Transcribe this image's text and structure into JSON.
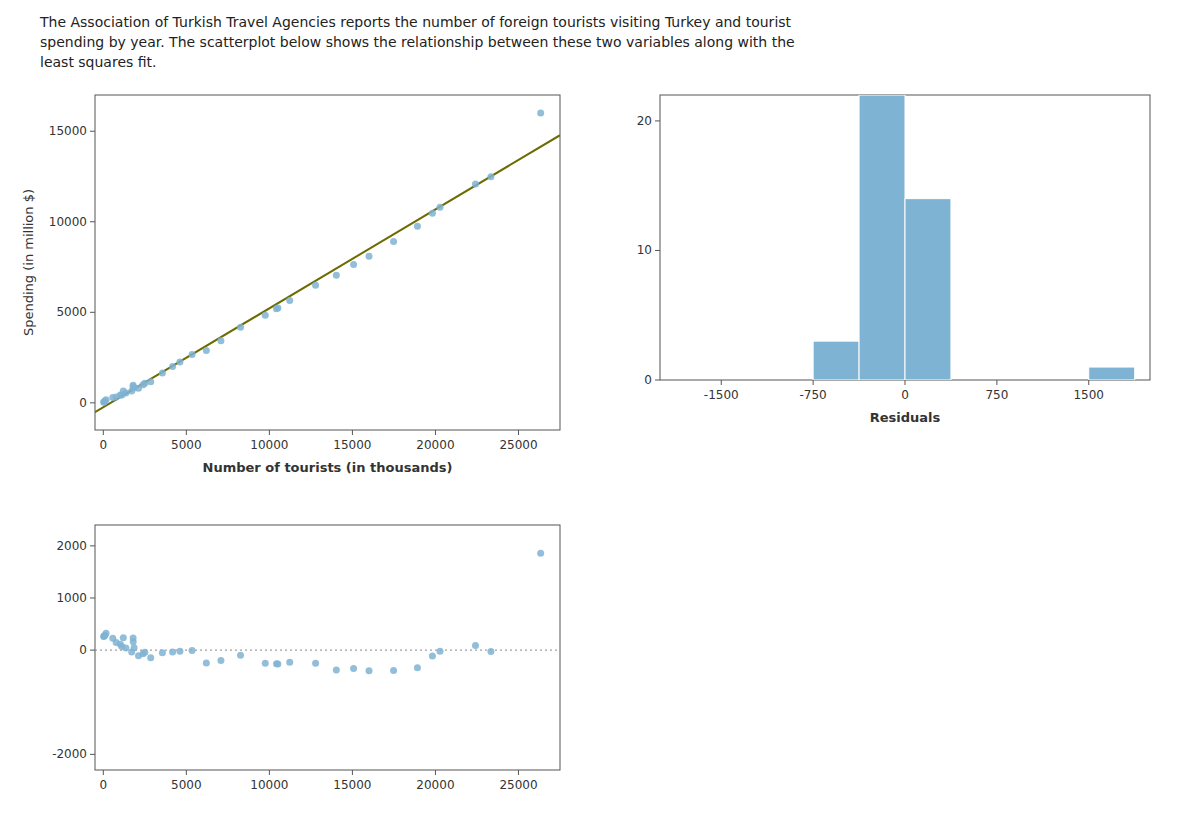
{
  "chart_data": [
    {
      "type": "scatter",
      "title": "The Association of Turkish Travel Agencies reports the number of foreign tourists visiting Turkey and tourist\nspending by year. The scatterplot below shows the relationship between these two variables along with the\nleast squares fit.",
      "xlabel": "Number of tourists (in thousands)",
      "ylabel": "Spending (in million $)",
      "xlim": [
        -500,
        27500
      ],
      "ylim": [
        -1500,
        17000
      ],
      "xticks": [
        0,
        5000,
        10000,
        15000,
        20000,
        25000
      ],
      "yticks": [
        0,
        5000,
        10000,
        15000
      ],
      "series": [
        {
          "type": "scatter",
          "color": "#7fb3d3",
          "x": [
            20,
            51,
            98,
            165,
            572,
            775,
            1025,
            1113,
            1204,
            1360,
            1711,
            1795,
            1800,
            1854,
            2119,
            2391,
            2499,
            2855,
            3559,
            4172,
            4614,
            5345,
            6203,
            7083,
            8262,
            9752,
            10428,
            10512,
            11225,
            12782,
            14031,
            15070,
            16000,
            17479,
            18916,
            19819,
            20273,
            22410,
            23340,
            26336
          ],
          "values": [
            28,
            56,
            96,
            172,
            300,
            326,
            431,
            434,
            654,
            541,
            655,
            970,
            904,
            818,
            808,
            995,
            1080,
            1170,
            1650,
            2003,
            2257,
            2669,
            2897,
            3428,
            4172,
            4834,
            5193,
            5234,
            5654,
            6487,
            7041,
            7637,
            8100,
            8916,
            9752,
            10472,
            10808,
            12088,
            12479,
            16000
          ]
        },
        {
          "type": "line",
          "color": "#6b6b00",
          "x": [
            -500,
            27500
          ],
          "values": [
            -514.69,
            14778.45
          ]
        }
      ]
    },
    {
      "type": "scatter",
      "xlim": [
        -500,
        27500
      ],
      "ylim": [
        -2300,
        2400
      ],
      "xticks": [
        0,
        5000,
        10000,
        15000,
        20000,
        25000
      ],
      "yticks": [
        -2000,
        0,
        1000,
        2000
      ],
      "hline": 0,
      "series": [
        {
          "type": "scatter",
          "color": "#7fb3d3",
          "x": [
            20,
            51,
            98,
            165,
            572,
            775,
            1025,
            1113,
            1204,
            1360,
            1711,
            1795,
            1800,
            1854,
            2119,
            2391,
            2499,
            2855,
            3559,
            4172,
            4614,
            5345,
            6203,
            7083,
            8262,
            9752,
            10428,
            10512,
            11225,
            12782,
            14031,
            15070,
            16000,
            17479,
            18916,
            19819,
            20273,
            22410,
            23340,
            26336
          ],
          "values": [
            258.68,
            269.74,
            284.07,
            323.48,
            229.18,
            144.31,
            112.76,
            67.7,
            237.99,
            39.79,
            -37.92,
            231.2,
            162.47,
            46.97,
            -107.76,
            -69.33,
            -43.31,
            -147.76,
            -52.27,
            -34.08,
            -21.49,
            -8.75,
            -249.38,
            -199.02,
            -98.97,
            -250.78,
            -261.0,
            -265.88,
            -235.31,
            -252.72,
            -380.9,
            -352.39,
            -397.34,
            -389.15,
            -338.01,
            -111.22,
            -23.18,
            89.62,
            -27.33,
            1857.31
          ]
        }
      ]
    },
    {
      "type": "histogram",
      "xlabel": "Residuals",
      "color": "#7fb3d3",
      "bins": [
        -1875,
        -1500,
        -1125,
        -750,
        -375,
        0,
        375,
        750,
        1125,
        1500,
        1875
      ],
      "values": [
        0,
        0,
        0,
        3,
        22,
        14,
        0,
        0,
        0,
        1
      ],
      "xlim": [
        -2000,
        2000
      ],
      "ylim": [
        0,
        22
      ],
      "xticks": [
        -1500,
        -750,
        0,
        750,
        1500
      ],
      "yticks": [
        0,
        10,
        20
      ]
    }
  ]
}
